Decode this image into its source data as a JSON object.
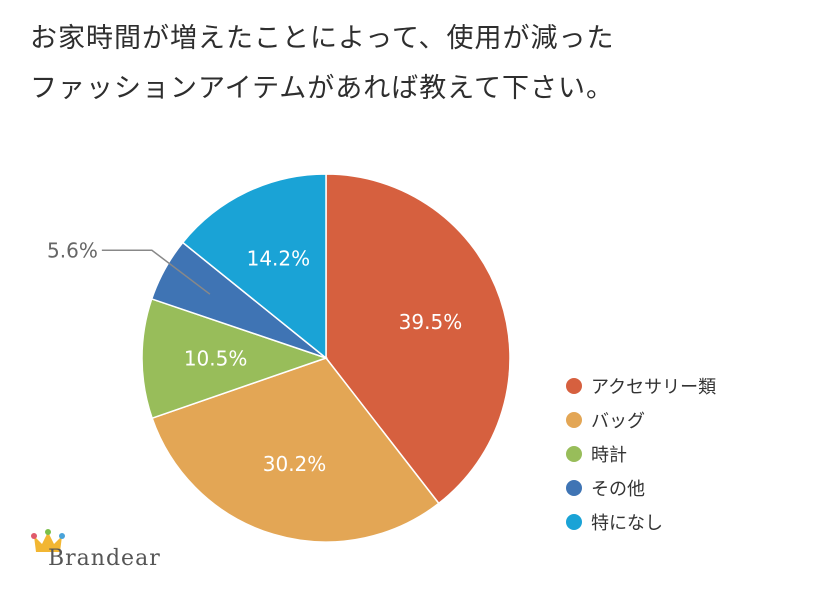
{
  "title_lines": [
    "お家時間が増えたことによって、使用が減った",
    "ファッションアイテムがあれば教えて下さい。"
  ],
  "logo_text": "Brandear",
  "chart_data": {
    "type": "pie",
    "slices": [
      {
        "label": "アクセサリー類",
        "value": 39.5,
        "display": "39.5%",
        "color": "#d6603f"
      },
      {
        "label": "バッグ",
        "value": 30.2,
        "display": "30.2%",
        "color": "#e3a655"
      },
      {
        "label": "時計",
        "value": 10.5,
        "display": "10.5%",
        "color": "#98bd5a"
      },
      {
        "label": "その他",
        "value": 5.6,
        "display": "5.6%",
        "color": "#3f74b4"
      },
      {
        "label": "特になし",
        "value": 14.2,
        "display": "14.2%",
        "color": "#1aa3d6"
      }
    ],
    "legend_placement": "right"
  }
}
